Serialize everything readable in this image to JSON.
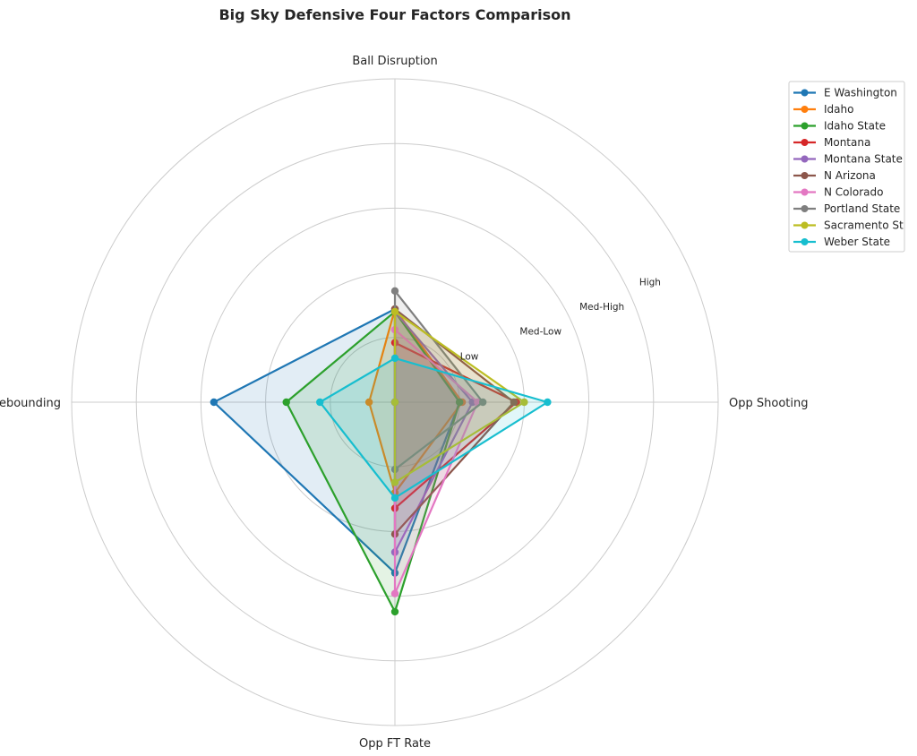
{
  "chart_data": {
    "type": "radar",
    "title": "Big Sky Defensive Four Factors Comparison",
    "categories": [
      "Ball Disruption",
      "Def Rebounding",
      "Opp FT Rate",
      "Opp Shooting"
    ],
    "rlim": [
      0,
      1.25
    ],
    "rticks": [
      0.25,
      0.5,
      0.75,
      1.0
    ],
    "rtick_labels": [
      "Low",
      "Med-Low",
      "Med-High",
      "High"
    ],
    "grid": true,
    "legend_position": "upper-right-outside",
    "series": [
      {
        "name": "E Washington",
        "color": "#1f77b4",
        "values": [
          0.36,
          0.7,
          0.66,
          0.25
        ]
      },
      {
        "name": "Idaho",
        "color": "#ff7f0e",
        "values": [
          0.36,
          0.1,
          0.35,
          0.26
        ]
      },
      {
        "name": "Idaho State",
        "color": "#2ca02c",
        "values": [
          0.35,
          0.42,
          0.81,
          0.25
        ]
      },
      {
        "name": "Montana",
        "color": "#d62728",
        "values": [
          0.23,
          0.0,
          0.41,
          0.47
        ]
      },
      {
        "name": "Montana State",
        "color": "#9467bd",
        "values": [
          0.35,
          0.0,
          0.58,
          0.3
        ]
      },
      {
        "name": "N Arizona",
        "color": "#8c564b",
        "values": [
          0.36,
          0.0,
          0.51,
          0.46
        ]
      },
      {
        "name": "N Colorado",
        "color": "#e377c2",
        "values": [
          0.28,
          0.0,
          0.74,
          0.32
        ]
      },
      {
        "name": "Portland State",
        "color": "#7f7f7f",
        "values": [
          0.43,
          0.0,
          0.26,
          0.34
        ]
      },
      {
        "name": "Sacramento St",
        "color": "#bcbd22",
        "values": [
          0.35,
          0.0,
          0.31,
          0.5
        ]
      },
      {
        "name": "Weber State",
        "color": "#17becf",
        "values": [
          0.17,
          0.29,
          0.37,
          0.59
        ]
      }
    ]
  }
}
